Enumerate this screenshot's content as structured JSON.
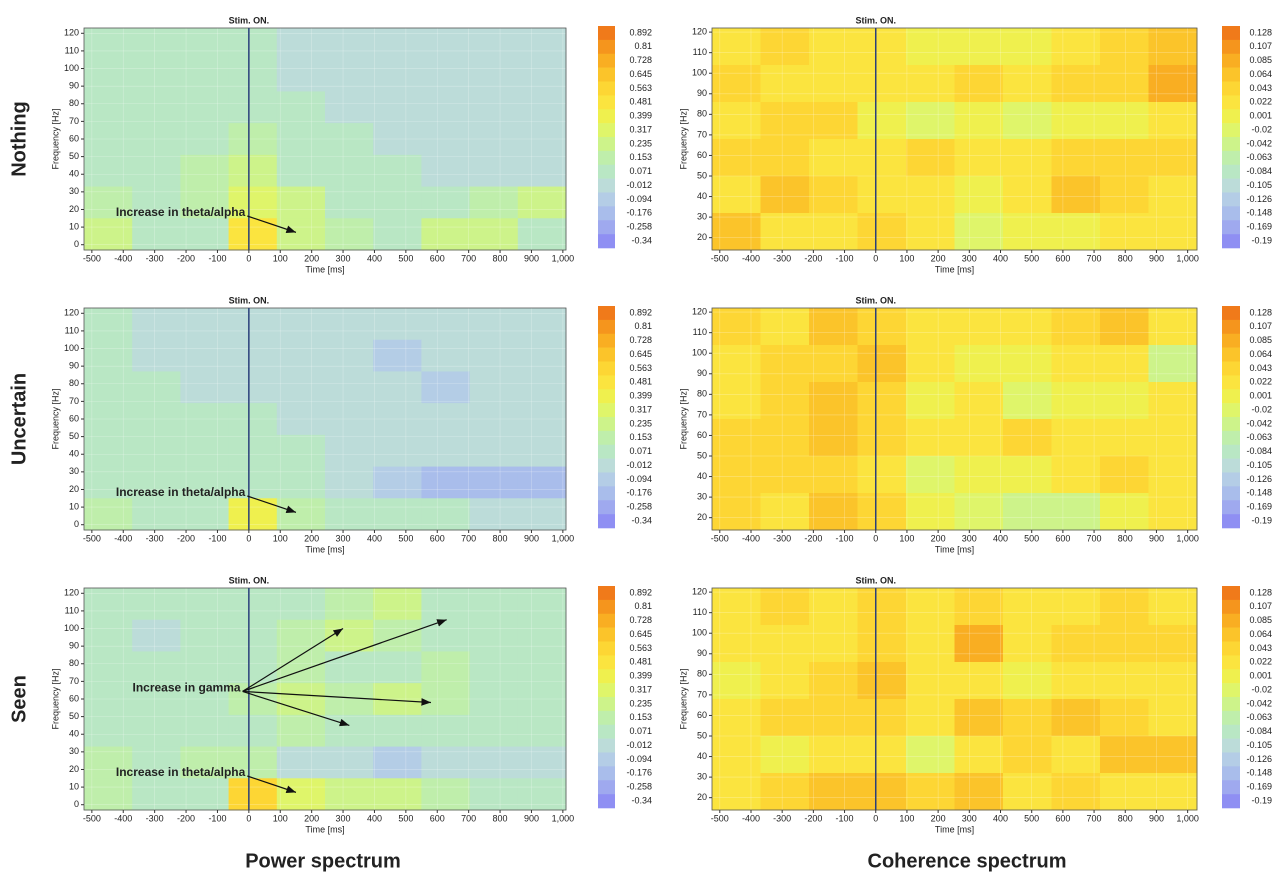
{
  "row_labels": [
    "Nothing",
    "Uncertain",
    "Seen"
  ],
  "column_titles": [
    "Power spectrum",
    "Coherence spectrum"
  ],
  "chart_data": [
    {
      "type": "heatmap",
      "xlabel": "Time [ms]",
      "ylabel": "Frequency [Hz]",
      "xlim": [
        -525,
        1010
      ],
      "ylim": [
        -3,
        123
      ],
      "xticks": [
        -500,
        -400,
        -300,
        -200,
        -100,
        0,
        100,
        200,
        300,
        400,
        500,
        600,
        700,
        800,
        900,
        {
          "value": 1000,
          "label": "1,000"
        }
      ],
      "yticks": [
        0,
        10,
        20,
        30,
        40,
        50,
        60,
        70,
        80,
        90,
        100,
        110,
        120
      ],
      "colorbar_ticks": [
        0.892,
        0.81,
        0.728,
        0.645,
        0.563,
        0.481,
        0.399,
        0.317,
        0.235,
        0.153,
        0.071,
        -0.012,
        -0.094,
        -0.176,
        -0.258,
        -0.34
      ],
      "colors": [
        "#f07a1a",
        "#f5951d",
        "#f9ae22",
        "#fbc42a",
        "#fdd634",
        "#fbe43f",
        "#eff04e",
        "#dff56a",
        "#cdf38a",
        "#bfeeab",
        "#b9e7c4",
        "#bcdcd9",
        "#b4cde6",
        "#a9bdeb",
        "#9fa9ef",
        "#8f8ff3"
      ],
      "grid": true,
      "z": [
        [
          0.07,
          0.07,
          0.1,
          0.07,
          0.0,
          -0.02,
          -0.05,
          -0.05,
          -0.02,
          -0.05
        ],
        [
          0.1,
          0.07,
          0.1,
          0.07,
          0.0,
          -0.05,
          -0.05,
          -0.02,
          -0.05,
          -0.02
        ],
        [
          0.1,
          0.1,
          0.1,
          0.1,
          0.03,
          0.0,
          -0.02,
          -0.05,
          -0.02,
          0.0
        ],
        [
          0.1,
          0.1,
          0.1,
          0.15,
          0.07,
          0.03,
          0.0,
          -0.02,
          0.0,
          -0.02
        ],
        [
          0.1,
          0.1,
          0.15,
          0.2,
          0.1,
          0.07,
          0.03,
          0.0,
          0.0,
          0.0
        ],
        [
          0.15,
          0.1,
          0.15,
          0.3,
          0.2,
          0.1,
          0.07,
          0.1,
          0.15,
          0.2
        ],
        [
          0.2,
          0.1,
          0.1,
          0.5,
          0.25,
          0.15,
          0.1,
          0.25,
          0.2,
          0.1
        ]
      ],
      "stim": {
        "text": "Stim. ON.",
        "x": 0
      },
      "annotations": [
        {
          "text": "Increase in theta/alpha",
          "xytext": [
            -5,
            18
          ],
          "targets": [
            [
              150,
              7
            ]
          ]
        }
      ]
    },
    {
      "type": "heatmap",
      "xlabel": "Time [ms]",
      "ylabel": "Frequency [Hz]",
      "xlim": [
        -525,
        1030
      ],
      "ylim": [
        14,
        122
      ],
      "xticks": [
        -500,
        -400,
        -300,
        -200,
        -100,
        0,
        100,
        200,
        300,
        400,
        500,
        600,
        700,
        800,
        900,
        {
          "value": 1000,
          "label": "1,000"
        }
      ],
      "yticks": [
        20,
        30,
        40,
        50,
        60,
        70,
        80,
        90,
        100,
        110,
        120
      ],
      "colorbar_ticks": [
        0.128,
        0.107,
        0.085,
        0.064,
        0.043,
        0.022,
        0.001,
        -0.02,
        -0.042,
        -0.063,
        -0.084,
        -0.105,
        -0.126,
        -0.148,
        -0.169,
        -0.19
      ],
      "colors": [
        "#f07a1a",
        "#f5951d",
        "#f9ae22",
        "#fbc42a",
        "#fdd634",
        "#fbe43f",
        "#eff04e",
        "#dff56a",
        "#cdf38a",
        "#bfeeab",
        "#b9e7c4",
        "#bcdcd9",
        "#b4cde6",
        "#a9bdeb",
        "#9fa9ef",
        "#8f8ff3"
      ],
      "grid": true,
      "z": [
        [
          0.03,
          0.04,
          0.03,
          0.02,
          0.0,
          0.0,
          0.01,
          0.02,
          0.04,
          0.07
        ],
        [
          0.04,
          0.03,
          0.02,
          0.03,
          0.02,
          0.04,
          0.03,
          0.04,
          0.05,
          0.08
        ],
        [
          0.03,
          0.04,
          0.04,
          0.0,
          -0.02,
          0.01,
          -0.02,
          0.0,
          0.01,
          0.02
        ],
        [
          0.04,
          0.05,
          0.03,
          0.02,
          0.04,
          0.03,
          0.02,
          0.05,
          0.04,
          0.05
        ],
        [
          0.03,
          0.06,
          0.04,
          0.03,
          0.02,
          0.01,
          0.03,
          0.06,
          0.04,
          0.03
        ],
        [
          0.06,
          0.02,
          0.03,
          0.04,
          0.02,
          -0.03,
          0.0,
          0.01,
          0.03,
          0.02
        ]
      ],
      "stim": {
        "text": "Stim. ON.",
        "x": 0
      },
      "annotations": []
    },
    {
      "type": "heatmap",
      "xlabel": "Time [ms]",
      "ylabel": "Frequency [Hz]",
      "xlim": [
        -525,
        1010
      ],
      "ylim": [
        -3,
        123
      ],
      "xticks": [
        -500,
        -400,
        -300,
        -200,
        -100,
        0,
        100,
        200,
        300,
        400,
        500,
        600,
        700,
        800,
        900,
        {
          "value": 1000,
          "label": "1,000"
        }
      ],
      "yticks": [
        0,
        10,
        20,
        30,
        40,
        50,
        60,
        70,
        80,
        90,
        100,
        110,
        120
      ],
      "colorbar_ticks": [
        0.892,
        0.81,
        0.728,
        0.645,
        0.563,
        0.481,
        0.399,
        0.317,
        0.235,
        0.153,
        0.071,
        -0.012,
        -0.094,
        -0.176,
        -0.258,
        -0.34
      ],
      "colors": [
        "#f07a1a",
        "#f5951d",
        "#f9ae22",
        "#fbc42a",
        "#fdd634",
        "#fbe43f",
        "#eff04e",
        "#dff56a",
        "#cdf38a",
        "#bfeeab",
        "#b9e7c4",
        "#bcdcd9",
        "#b4cde6",
        "#a9bdeb",
        "#9fa9ef",
        "#8f8ff3"
      ],
      "grid": true,
      "z": [
        [
          0.03,
          0.0,
          0.0,
          0.0,
          -0.02,
          -0.05,
          -0.05,
          -0.02,
          -0.05,
          -0.02
        ],
        [
          0.03,
          0.0,
          -0.02,
          0.0,
          -0.05,
          -0.02,
          -0.08,
          -0.05,
          -0.02,
          -0.05
        ],
        [
          0.07,
          0.03,
          0.0,
          0.0,
          -0.02,
          -0.05,
          -0.05,
          -0.08,
          -0.05,
          -0.02
        ],
        [
          0.07,
          0.03,
          0.03,
          0.07,
          0.0,
          -0.02,
          -0.05,
          -0.05,
          -0.02,
          -0.05
        ],
        [
          0.07,
          0.07,
          0.03,
          0.07,
          0.03,
          0.0,
          -0.05,
          -0.02,
          -0.05,
          -0.02
        ],
        [
          0.1,
          0.07,
          0.07,
          0.1,
          0.03,
          -0.05,
          -0.1,
          -0.2,
          -0.2,
          -0.15
        ],
        [
          0.15,
          0.1,
          0.1,
          0.4,
          0.15,
          0.1,
          0.07,
          0.03,
          0.0,
          0.0
        ]
      ],
      "stim": {
        "text": "Stim. ON.",
        "x": 0
      },
      "annotations": [
        {
          "text": "Increase in theta/alpha",
          "xytext": [
            -5,
            18
          ],
          "targets": [
            [
              150,
              7
            ]
          ]
        }
      ]
    },
    {
      "type": "heatmap",
      "xlabel": "Time [ms]",
      "ylabel": "Frequency [Hz]",
      "xlim": [
        -525,
        1030
      ],
      "ylim": [
        14,
        122
      ],
      "xticks": [
        -500,
        -400,
        -300,
        -200,
        -100,
        0,
        100,
        200,
        300,
        400,
        500,
        600,
        700,
        800,
        900,
        {
          "value": 1000,
          "label": "1,000"
        }
      ],
      "yticks": [
        20,
        30,
        40,
        50,
        60,
        70,
        80,
        90,
        100,
        110,
        120
      ],
      "colorbar_ticks": [
        0.128,
        0.107,
        0.085,
        0.064,
        0.043,
        0.022,
        0.001,
        -0.02,
        -0.042,
        -0.063,
        -0.084,
        -0.105,
        -0.126,
        -0.148,
        -0.169,
        -0.19
      ],
      "colors": [
        "#f07a1a",
        "#f5951d",
        "#f9ae22",
        "#fbc42a",
        "#fdd634",
        "#fbe43f",
        "#eff04e",
        "#dff56a",
        "#cdf38a",
        "#bfeeab",
        "#b9e7c4",
        "#bcdcd9",
        "#b4cde6",
        "#a9bdeb",
        "#9fa9ef",
        "#8f8ff3"
      ],
      "grid": true,
      "z": [
        [
          0.04,
          0.03,
          0.06,
          0.04,
          0.02,
          0.03,
          0.03,
          0.05,
          0.06,
          0.02
        ],
        [
          0.03,
          0.05,
          0.04,
          0.07,
          0.02,
          0.01,
          0.0,
          0.02,
          0.02,
          -0.04
        ],
        [
          0.03,
          0.04,
          0.06,
          0.05,
          0.0,
          0.02,
          -0.02,
          0.01,
          0.0,
          0.02
        ],
        [
          0.04,
          0.05,
          0.06,
          0.04,
          0.02,
          0.03,
          0.05,
          0.03,
          0.02,
          0.02
        ],
        [
          0.04,
          0.04,
          0.05,
          0.03,
          -0.02,
          0.0,
          0.01,
          0.03,
          0.05,
          0.03
        ],
        [
          0.05,
          0.02,
          0.06,
          0.04,
          0.01,
          -0.03,
          -0.04,
          -0.04,
          0.0,
          0.02
        ]
      ],
      "stim": {
        "text": "Stim. ON.",
        "x": 0
      },
      "annotations": []
    },
    {
      "type": "heatmap",
      "xlabel": "Time [ms]",
      "ylabel": "Frequency [Hz]",
      "xlim": [
        -525,
        1010
      ],
      "ylim": [
        -3,
        123
      ],
      "xticks": [
        -500,
        -400,
        -300,
        -200,
        -100,
        0,
        100,
        200,
        300,
        400,
        500,
        600,
        700,
        800,
        900,
        {
          "value": 1000,
          "label": "1,000"
        }
      ],
      "yticks": [
        0,
        10,
        20,
        30,
        40,
        50,
        60,
        70,
        80,
        90,
        100,
        110,
        120
      ],
      "colorbar_ticks": [
        0.892,
        0.81,
        0.728,
        0.645,
        0.563,
        0.481,
        0.399,
        0.317,
        0.235,
        0.153,
        0.071,
        -0.012,
        -0.094,
        -0.176,
        -0.258,
        -0.34
      ],
      "colors": [
        "#f07a1a",
        "#f5951d",
        "#f9ae22",
        "#fbc42a",
        "#fdd634",
        "#fbe43f",
        "#eff04e",
        "#dff56a",
        "#cdf38a",
        "#bfeeab",
        "#b9e7c4",
        "#bcdcd9",
        "#b4cde6",
        "#a9bdeb",
        "#9fa9ef",
        "#8f8ff3"
      ],
      "grid": true,
      "z": [
        [
          0.03,
          0.03,
          0.03,
          0.07,
          0.1,
          0.15,
          0.2,
          0.1,
          0.07,
          0.03
        ],
        [
          0.03,
          0.0,
          0.03,
          0.1,
          0.15,
          0.2,
          0.15,
          0.1,
          0.1,
          0.03
        ],
        [
          0.07,
          0.03,
          0.07,
          0.1,
          0.15,
          0.1,
          0.1,
          0.15,
          0.1,
          0.07
        ],
        [
          0.07,
          0.07,
          0.1,
          0.15,
          0.2,
          0.15,
          0.2,
          0.15,
          0.1,
          0.07
        ],
        [
          0.1,
          0.07,
          0.1,
          0.1,
          0.15,
          0.1,
          0.1,
          0.07,
          0.07,
          0.03
        ],
        [
          0.15,
          0.1,
          0.15,
          0.15,
          0.0,
          -0.05,
          -0.1,
          -0.05,
          -0.02,
          0.0
        ],
        [
          0.15,
          0.1,
          0.1,
          0.6,
          0.3,
          0.25,
          0.2,
          0.15,
          0.1,
          0.1
        ]
      ],
      "stim": {
        "text": "Stim. ON.",
        "x": 0
      },
      "annotations": [
        {
          "text": "Increase in gamma",
          "xytext": [
            -20,
            66
          ],
          "targets": [
            [
              300,
              100
            ],
            [
              630,
              105
            ],
            [
              580,
              58
            ],
            [
              320,
              45
            ]
          ]
        },
        {
          "text": "Increase in theta/alpha",
          "xytext": [
            -5,
            18
          ],
          "targets": [
            [
              150,
              7
            ]
          ]
        }
      ]
    },
    {
      "type": "heatmap",
      "xlabel": "Time [ms]",
      "ylabel": "Frequency [Hz]",
      "xlim": [
        -525,
        1030
      ],
      "ylim": [
        14,
        122
      ],
      "xticks": [
        -500,
        -400,
        -300,
        -200,
        -100,
        0,
        100,
        200,
        300,
        400,
        500,
        600,
        700,
        800,
        900,
        {
          "value": 1000,
          "label": "1,000"
        }
      ],
      "yticks": [
        20,
        30,
        40,
        50,
        60,
        70,
        80,
        90,
        100,
        110,
        120
      ],
      "colorbar_ticks": [
        0.128,
        0.107,
        0.085,
        0.064,
        0.043,
        0.022,
        0.001,
        -0.02,
        -0.042,
        -0.063,
        -0.084,
        -0.105,
        -0.126,
        -0.148,
        -0.169,
        -0.19
      ],
      "colors": [
        "#f07a1a",
        "#f5951d",
        "#f9ae22",
        "#fbc42a",
        "#fdd634",
        "#fbe43f",
        "#eff04e",
        "#dff56a",
        "#cdf38a",
        "#bfeeab",
        "#b9e7c4",
        "#bcdcd9",
        "#b4cde6",
        "#a9bdeb",
        "#9fa9ef",
        "#8f8ff3"
      ],
      "grid": true,
      "z": [
        [
          0.02,
          0.04,
          0.03,
          0.05,
          0.02,
          0.04,
          0.03,
          0.02,
          0.05,
          0.03
        ],
        [
          0.03,
          0.02,
          0.03,
          0.04,
          0.03,
          0.08,
          0.03,
          0.04,
          0.04,
          0.05
        ],
        [
          0.0,
          0.02,
          0.04,
          0.06,
          0.02,
          0.03,
          0.0,
          0.03,
          0.02,
          0.02
        ],
        [
          0.03,
          0.04,
          0.05,
          0.04,
          0.03,
          0.07,
          0.04,
          0.07,
          0.04,
          0.03
        ],
        [
          0.02,
          0.01,
          0.03,
          0.02,
          -0.02,
          0.03,
          0.04,
          0.02,
          0.07,
          0.06
        ],
        [
          0.03,
          0.05,
          0.07,
          0.06,
          0.04,
          0.06,
          0.03,
          0.04,
          0.03,
          0.02
        ]
      ],
      "stim": {
        "text": "Stim. ON.",
        "x": 0
      },
      "annotations": []
    }
  ]
}
